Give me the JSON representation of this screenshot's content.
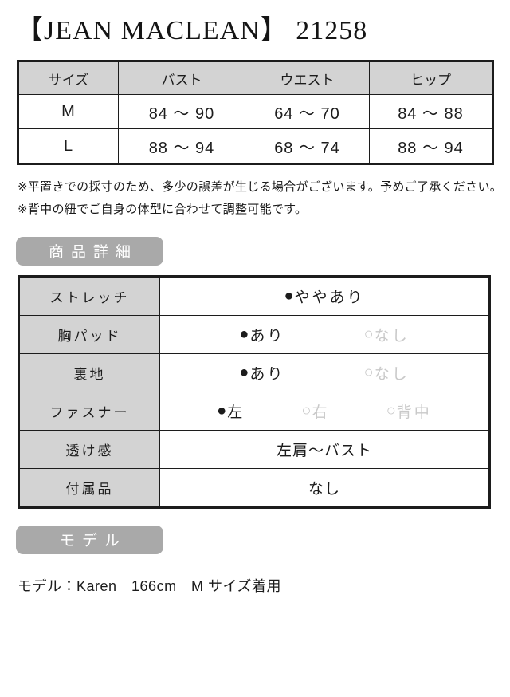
{
  "title": "【JEAN MACLEAN】 21258",
  "size_table": {
    "headers": [
      "サイズ",
      "バスト",
      "ウエスト",
      "ヒップ"
    ],
    "rows": [
      [
        "M",
        "84 〜 90",
        "64 〜 70",
        "84 〜 88"
      ],
      [
        "L",
        "88 〜 94",
        "68 〜 74",
        "88 〜 94"
      ]
    ]
  },
  "notes": [
    "※平置きでの採寸のため、多少の誤差が生じる場合がございます。予めご了承ください。",
    "※背中の紐でご自身の体型に合わせて調整可能です。"
  ],
  "detail_section": {
    "heading": "商品詳細",
    "rows": [
      {
        "label": "ストレッチ",
        "options": [
          {
            "marker": "●",
            "text": "ややあり",
            "selected": true
          }
        ]
      },
      {
        "label": "胸パッド",
        "options": [
          {
            "marker": "●",
            "text": "あり",
            "selected": true
          },
          {
            "marker": "○",
            "text": "なし",
            "selected": false
          }
        ]
      },
      {
        "label": "裏地",
        "options": [
          {
            "marker": "●",
            "text": "あり",
            "selected": true
          },
          {
            "marker": "○",
            "text": "なし",
            "selected": false
          }
        ]
      },
      {
        "label": "ファスナー",
        "options": [
          {
            "marker": "●",
            "text": "左",
            "selected": true
          },
          {
            "marker": "○",
            "text": "右",
            "selected": false
          },
          {
            "marker": "○",
            "text": "背中",
            "selected": false
          }
        ]
      },
      {
        "label": "透け感",
        "text": "左肩〜バスト"
      },
      {
        "label": "付属品",
        "text": "なし"
      }
    ]
  },
  "model_section": {
    "heading": "モデル",
    "text": "モデル：Karen　166cm　M サイズ着用"
  },
  "colors": {
    "table_header_bg": "#d3d3d3",
    "badge_bg": "#a9a9a9",
    "border": "#1c1c1c",
    "unselected_option": "#c9c9c9",
    "text": "#1c1c1c"
  }
}
